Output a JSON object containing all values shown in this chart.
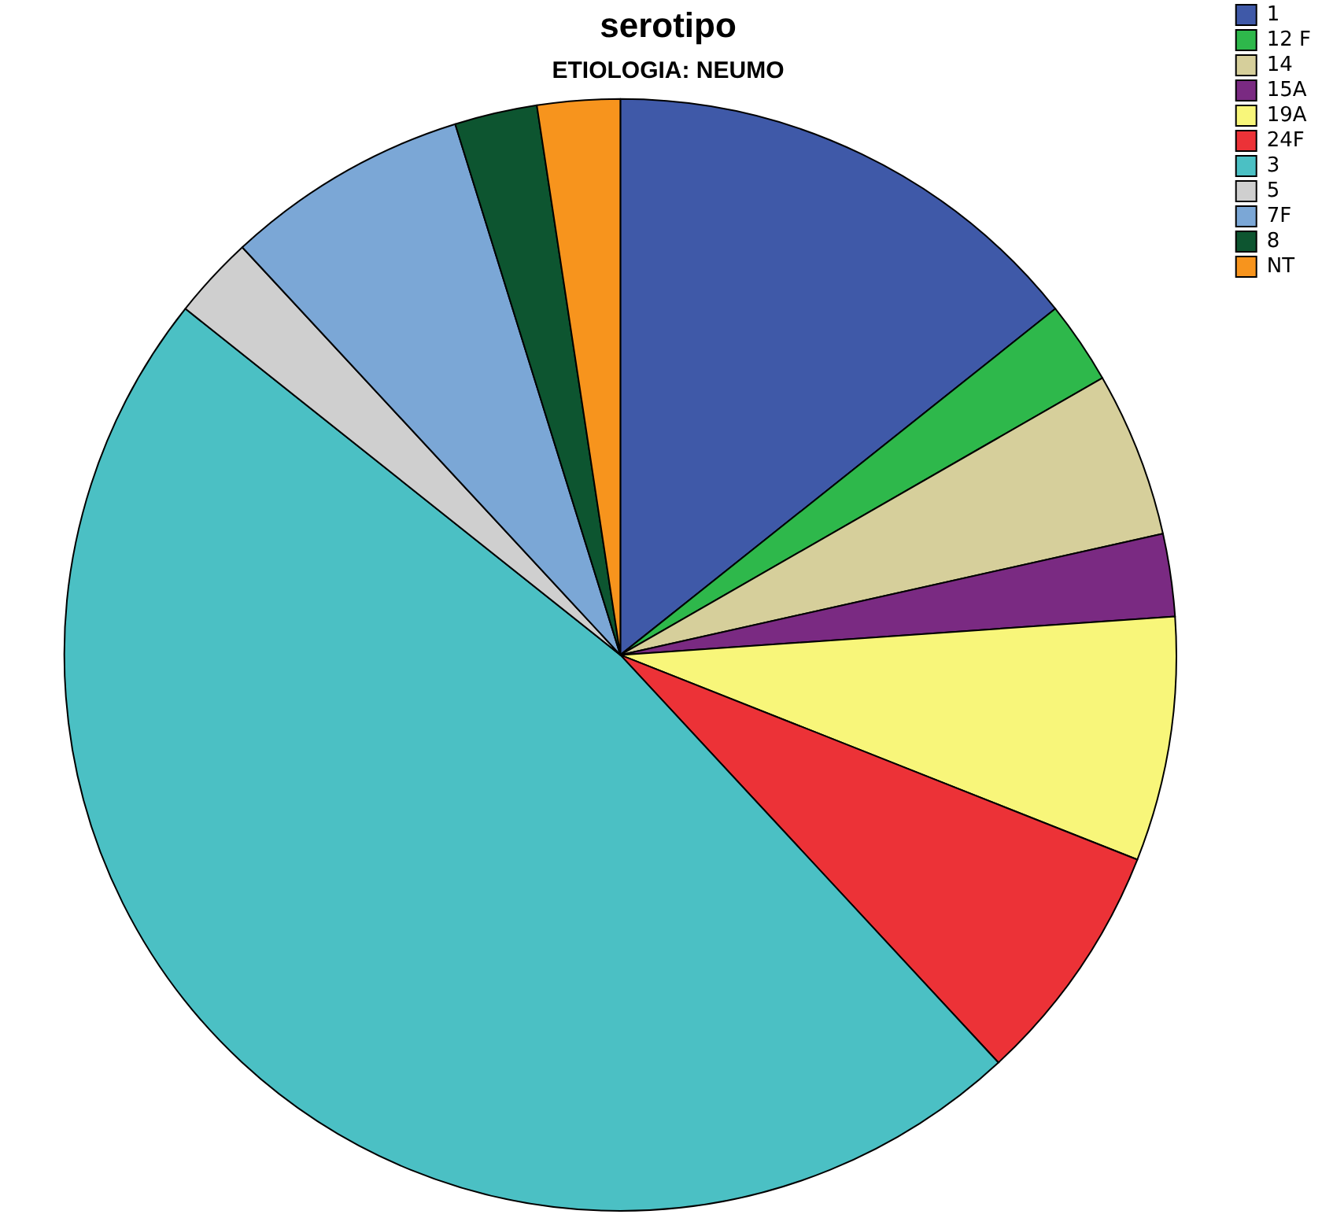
{
  "chart_data": {
    "type": "pie",
    "title": "serotipo",
    "subtitle": "ETIOLOGIA: NEUMO",
    "categories": [
      "1",
      "12 F",
      "14",
      "15A",
      "19A",
      "24F",
      "3",
      "5",
      "7F",
      "8",
      "NT"
    ],
    "values": [
      14.3,
      2.4,
      4.8,
      2.4,
      7.1,
      7.1,
      47.6,
      2.4,
      7.1,
      2.4,
      2.4
    ],
    "colors": [
      "#3f59a8",
      "#2eb84b",
      "#d6cf9b",
      "#7a2a82",
      "#f8f67a",
      "#ec3237",
      "#4bc0c4",
      "#cfcfcf",
      "#7ba7d6",
      "#0d5530",
      "#f7941d"
    ],
    "legend": "top right"
  }
}
